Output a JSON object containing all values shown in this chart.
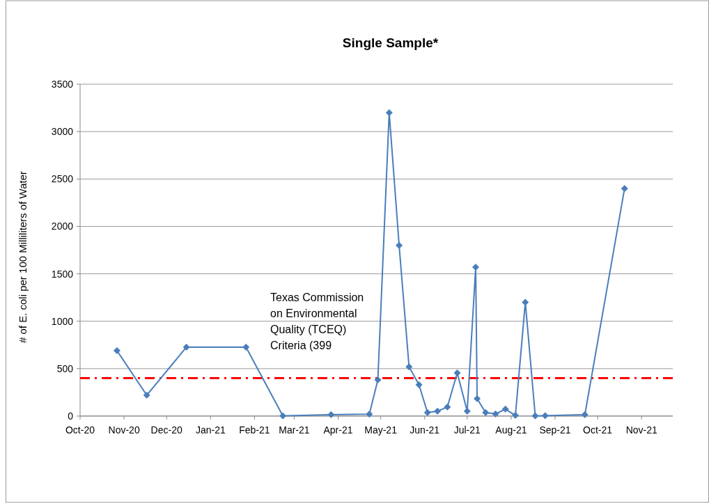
{
  "chart_data": {
    "type": "line",
    "title": "Single Sample*",
    "ylabel": "# of E. coli per 100 Milliliters of Water",
    "x": [
      "2020-10-27",
      "2020-11-17",
      "2020-12-15",
      "2021-01-26",
      "2021-02-21",
      "2021-03-27",
      "2021-04-23",
      "2021-04-29",
      "2021-05-07",
      "2021-05-14",
      "2021-05-21",
      "2021-05-28",
      "2021-06-03",
      "2021-06-10",
      "2021-06-17",
      "2021-06-24",
      "2021-07-01",
      "2021-07-07",
      "2021-07-08",
      "2021-07-14",
      "2021-07-21",
      "2021-07-28",
      "2021-08-04",
      "2021-08-11",
      "2021-08-18",
      "2021-08-25",
      "2021-09-22",
      "2021-10-20"
    ],
    "series": [
      {
        "color": "#4a7ebb",
        "values": [
          690,
          220,
          727,
          727,
          2,
          15,
          20,
          381,
          3200,
          1800,
          520,
          330,
          37,
          51,
          95,
          455,
          51,
          1570,
          183,
          37,
          22,
          73,
          7,
          1200,
          2,
          4,
          15,
          2400
        ]
      }
    ],
    "xlim": [
      "2020-10-01",
      "2021-11-23"
    ],
    "xticks": [
      {
        "value": "2020-10-01",
        "label": "Oct-20"
      },
      {
        "value": "2020-11-01",
        "label": "Nov-20"
      },
      {
        "value": "2020-12-01",
        "label": "Dec-20"
      },
      {
        "value": "2021-01-01",
        "label": "Jan-21"
      },
      {
        "value": "2021-02-01",
        "label": "Feb-21"
      },
      {
        "value": "2021-03-01",
        "label": "Mar-21"
      },
      {
        "value": "2021-04-01",
        "label": "Apr-21"
      },
      {
        "value": "2021-05-01",
        "label": "May-21"
      },
      {
        "value": "2021-06-01",
        "label": "Jun-21"
      },
      {
        "value": "2021-07-01",
        "label": "Jul-21"
      },
      {
        "value": "2021-08-01",
        "label": "Aug-21"
      },
      {
        "value": "2021-09-01",
        "label": "Sep-21"
      },
      {
        "value": "2021-10-01",
        "label": "Oct-21"
      },
      {
        "value": "2021-11-01",
        "label": "Nov-21"
      }
    ],
    "ylim": [
      0,
      3500
    ],
    "yticks": [
      0,
      500,
      1000,
      1500,
      2000,
      2500,
      3000,
      3500
    ],
    "grid": "y",
    "marker": "diamond",
    "line_style": "solid",
    "ref_lines": [
      {
        "axis": "y",
        "value": 399,
        "label": "Texas Commission on Environmental Quality (TCEQ) Criteria (399",
        "color": "#ff0000",
        "line_style": "dashed"
      }
    ]
  }
}
